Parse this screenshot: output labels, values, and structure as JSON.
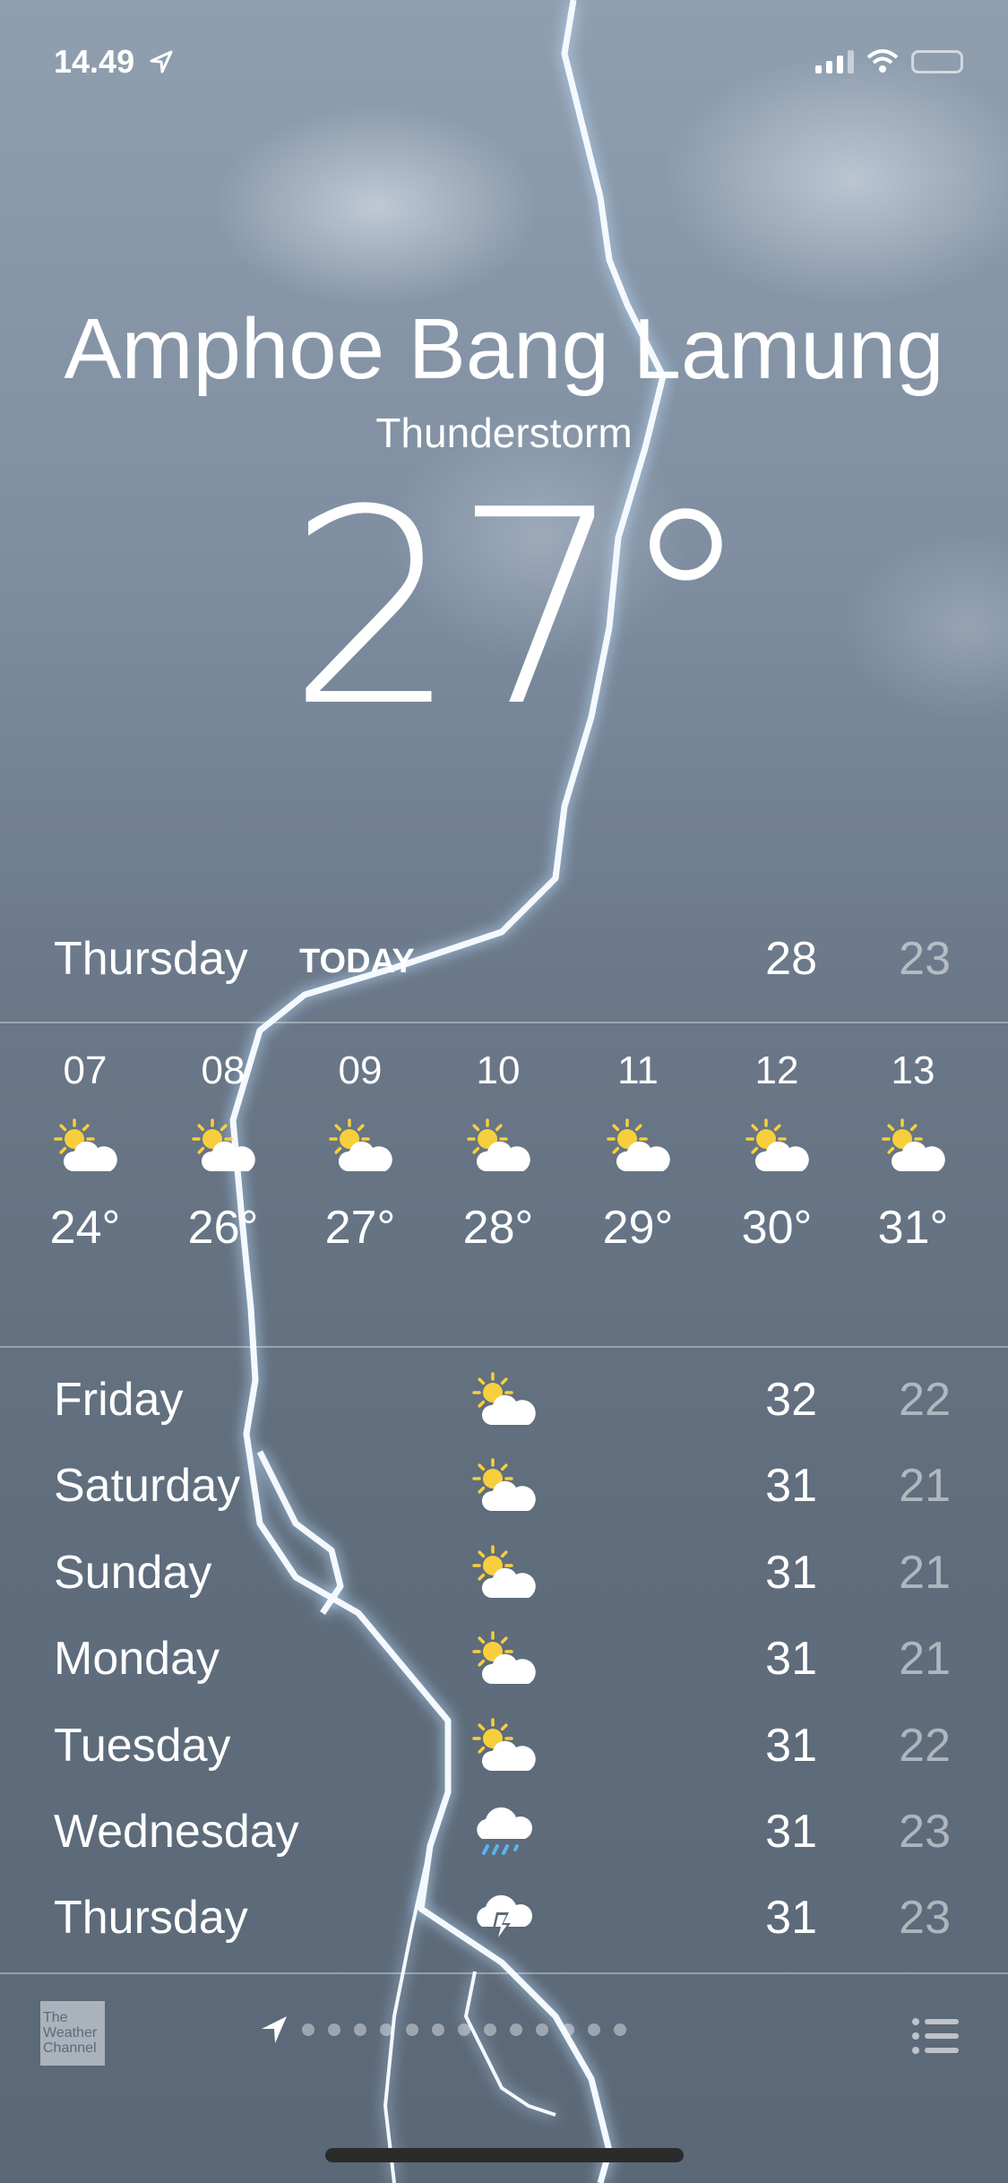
{
  "status_bar": {
    "time": "14.49",
    "location_icon": "location-arrow-icon",
    "signal_icon": "cellular-signal-icon",
    "wifi_icon": "wifi-icon",
    "battery_icon": "battery-icon"
  },
  "location": {
    "city": "Amphoe Bang Lamung",
    "condition": "Thunderstorm",
    "temperature": "27°"
  },
  "today": {
    "day": "Thursday",
    "tag": "TODAY",
    "high": "28",
    "low": "23"
  },
  "hourly": [
    {
      "hour": "07",
      "icon": "partly-sunny-icon",
      "temp": "24°"
    },
    {
      "hour": "08",
      "icon": "partly-sunny-icon",
      "temp": "26°"
    },
    {
      "hour": "09",
      "icon": "partly-sunny-icon",
      "temp": "27°"
    },
    {
      "hour": "10",
      "icon": "partly-sunny-icon",
      "temp": "28°"
    },
    {
      "hour": "11",
      "icon": "partly-sunny-icon",
      "temp": "29°"
    },
    {
      "hour": "12",
      "icon": "partly-sunny-icon",
      "temp": "30°"
    },
    {
      "hour": "13",
      "icon": "partly-sunny-icon",
      "temp": "31°"
    }
  ],
  "daily": [
    {
      "day": "Friday",
      "icon": "partly-sunny-icon",
      "high": "32",
      "low": "22"
    },
    {
      "day": "Saturday",
      "icon": "partly-sunny-icon",
      "high": "31",
      "low": "21"
    },
    {
      "day": "Sunday",
      "icon": "partly-sunny-icon",
      "high": "31",
      "low": "21"
    },
    {
      "day": "Monday",
      "icon": "partly-sunny-icon",
      "high": "31",
      "low": "21"
    },
    {
      "day": "Tuesday",
      "icon": "partly-sunny-icon",
      "high": "31",
      "low": "22"
    },
    {
      "day": "Wednesday",
      "icon": "rain-cloud-icon",
      "high": "31",
      "low": "23"
    },
    {
      "day": "Thursday",
      "icon": "thunderstorm-icon",
      "high": "31",
      "low": "23"
    }
  ],
  "footer": {
    "logo_text": "The Weather Channel",
    "page_count": 14,
    "current_page": "location",
    "list_icon": "list-icon"
  },
  "colors": {
    "sun": "#f7cf3c",
    "rain": "#5ab4ec"
  }
}
